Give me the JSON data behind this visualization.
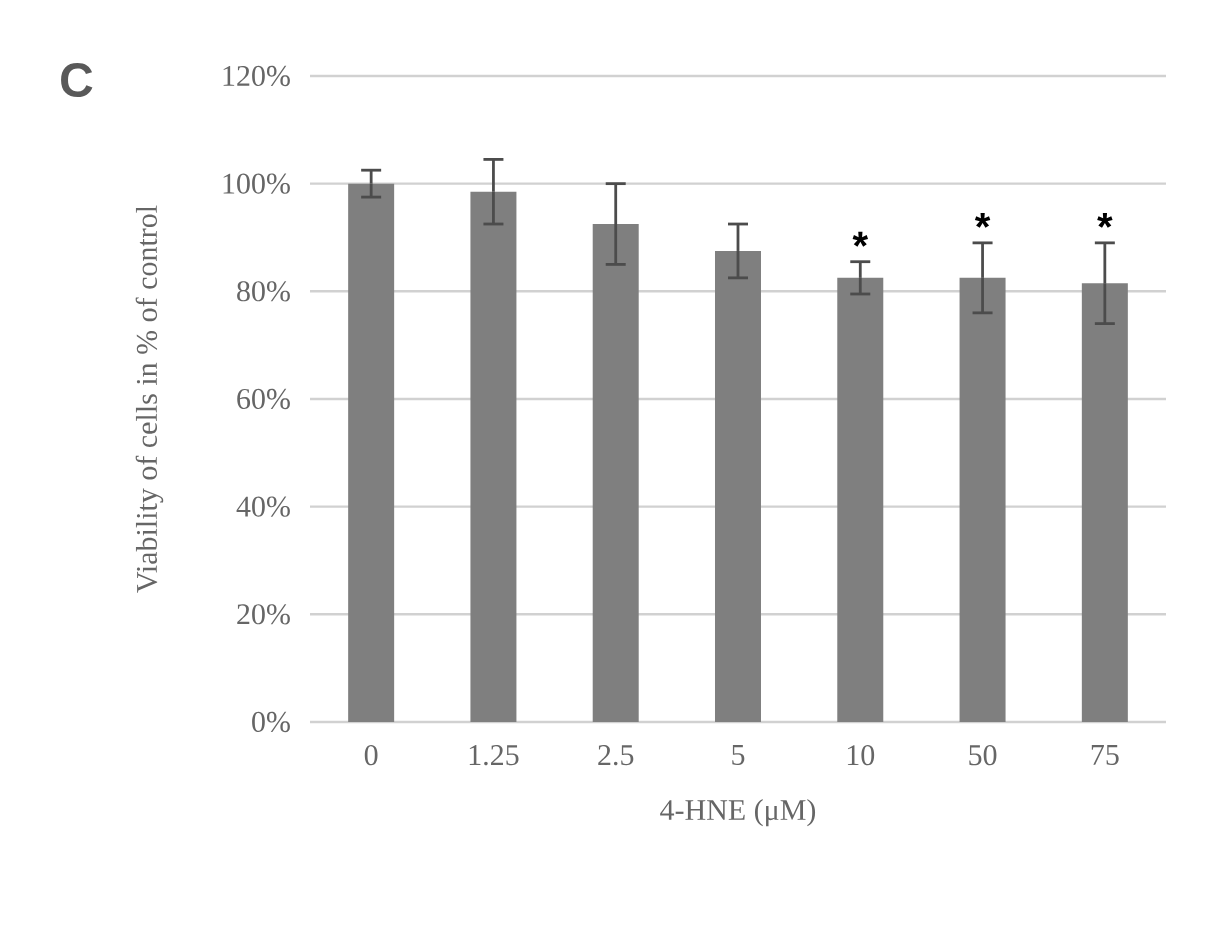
{
  "chart_data": {
    "type": "bar",
    "title": "C",
    "xlabel": "4-HNE (μM)",
    "ylabel": "Viability  of cells in % of control",
    "categories": [
      "0",
      "1.25",
      "2.5",
      "5",
      "10",
      "50",
      "75"
    ],
    "values": [
      100,
      98.5,
      92.5,
      87.5,
      82.5,
      82.5,
      81.5
    ],
    "errors": [
      2.5,
      6,
      7.5,
      5,
      3,
      6.5,
      7.5
    ],
    "color": "#7f7f7f",
    "ylim": [
      0,
      120
    ],
    "yticks": [
      {
        "value": 0,
        "label": "0%"
      },
      {
        "value": 20,
        "label": "20%"
      },
      {
        "value": 40,
        "label": "40%"
      },
      {
        "value": 60,
        "label": "60%"
      },
      {
        "value": 80,
        "label": "80%"
      },
      {
        "value": 100,
        "label": "100%"
      },
      {
        "value": 120,
        "label": "120%"
      }
    ],
    "grid": "y",
    "annotations": [
      {
        "text": "*",
        "x": "10",
        "y": 85.5
      },
      {
        "text": "*",
        "x": "50",
        "y": 89
      },
      {
        "text": "*",
        "x": "75",
        "y": 89
      }
    ]
  }
}
